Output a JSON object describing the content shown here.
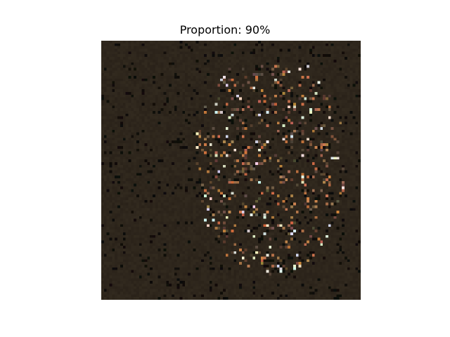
{
  "figure": {
    "title": "Proportion: 90%"
  },
  "image": {
    "description_colors": {
      "background": "#2e261c",
      "dark_pixel": "#0c0a08",
      "warm_highlight": "#c07a45",
      "light_highlight": "#e8e4dc"
    },
    "grid_size": 96
  }
}
